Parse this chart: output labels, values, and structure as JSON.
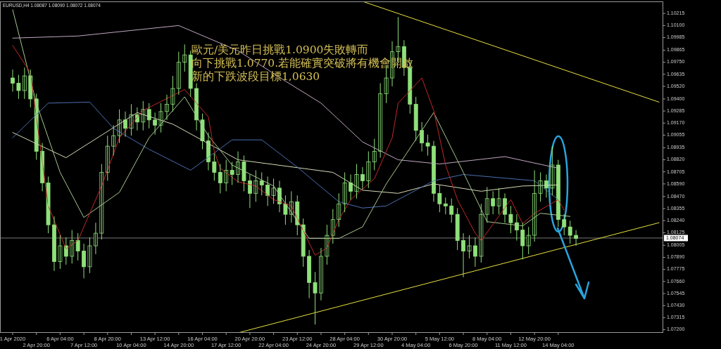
{
  "chart_data": {
    "type": "candlestick",
    "title": "EURUSD,H4 1.08087 1.08090 1.08072 1.08074",
    "annotations": [
      "歐元/美元昨日挑戰1.0900失敗轉而",
      "向下挑戰1.0770.若能確實突破將有機會開啟",
      "新的下跌波段目標1,0630"
    ],
    "categories": [
      "1 Apr 2020",
      null,
      null,
      null,
      "2 Apr 20:00",
      null,
      null,
      null,
      "6 Apr 04:00",
      null,
      null,
      null,
      "7 Apr 12:00",
      null,
      null,
      null,
      "8 Apr 20:00",
      null,
      null,
      null,
      "10 Apr 04:00",
      null,
      null,
      null,
      "13 Apr 12:00",
      null,
      null,
      null,
      "14 Apr 20:00",
      null,
      null,
      null,
      "16 Apr 04:00",
      null,
      null,
      null,
      "17 Apr 12:00",
      null,
      null,
      null,
      "20 Apr 20:00",
      null,
      null,
      null,
      "22 Apr 04:00",
      null,
      null,
      null,
      "23 Apr 12:00",
      null,
      null,
      null,
      "24 Apr 20:00",
      null,
      null,
      null,
      "28 Apr 04:00",
      null,
      null,
      null,
      "29 Apr 12:00",
      null,
      null,
      null,
      "30 Apr 20:00",
      null,
      null,
      null,
      "4 May 04:00",
      null,
      null,
      null,
      "5 May 12:00",
      null,
      null,
      null,
      "6 May 20:00",
      null,
      null,
      null,
      "8 May 04:00",
      null,
      null,
      null,
      "11 May 12:00",
      null,
      null,
      null,
      "12 May 20:00",
      null,
      null,
      null,
      "14 May 04:00",
      null,
      null,
      null,
      null,
      null,
      null,
      null,
      null,
      null,
      null,
      null,
      null,
      null,
      null,
      null,
      null,
      null
    ],
    "ylim": [
      1.0717,
      1.1033
    ],
    "yticks": [
      {
        "value": 1.072,
        "label": "1.07200"
      },
      {
        "value": 1.07315,
        "label": "1.07315"
      },
      {
        "value": 1.0743,
        "label": "1.07430"
      },
      {
        "value": 1.07545,
        "label": "1.07545"
      },
      {
        "value": 1.0766,
        "label": "1.07660"
      },
      {
        "value": 1.07775,
        "label": "1.07775"
      },
      {
        "value": 1.0789,
        "label": "1.07890"
      },
      {
        "value": 1.08005,
        "label": "1.08005"
      },
      {
        "value": 1.08125,
        "label": "1.08125"
      },
      {
        "value": 1.0824,
        "label": "1.08240"
      },
      {
        "value": 1.08355,
        "label": "1.08355"
      },
      {
        "value": 1.0847,
        "label": "1.08470"
      },
      {
        "value": 1.0859,
        "label": "1.08590"
      },
      {
        "value": 1.08705,
        "label": "1.08705"
      },
      {
        "value": 1.0882,
        "label": "1.08820"
      },
      {
        "value": 1.08935,
        "label": "1.08935"
      },
      {
        "value": 1.09055,
        "label": "1.09055"
      },
      {
        "value": 1.0917,
        "label": "1.09170"
      },
      {
        "value": 1.09285,
        "label": "1.09285"
      },
      {
        "value": 1.094,
        "label": "1.09400"
      },
      {
        "value": 1.0952,
        "label": "1.09520"
      },
      {
        "value": 1.09635,
        "label": "1.09635"
      },
      {
        "value": 1.0975,
        "label": "1.09750"
      },
      {
        "value": 1.09865,
        "label": "1.09865"
      },
      {
        "value": 1.09985,
        "label": "1.09985"
      },
      {
        "value": 1.101,
        "label": "1.10100"
      },
      {
        "value": 1.10215,
        "label": "1.10215"
      }
    ],
    "ref_lines": [
      {
        "axis": "y",
        "value": 1.08074,
        "label": "1.08074",
        "color": "#777777"
      }
    ],
    "series": [
      {
        "type": "line",
        "color": "#c0a8c0",
        "values": [
          1.0998,
          null,
          null,
          null,
          null,
          null,
          null,
          null,
          null,
          null,
          null,
          1.1,
          null,
          null,
          null,
          null,
          null,
          null,
          null,
          null,
          null,
          null,
          null,
          null,
          null,
          null,
          null,
          null,
          1.101,
          null,
          null,
          null,
          null,
          null,
          null,
          null,
          null,
          null,
          1.0986,
          null,
          null,
          null,
          null,
          null,
          null,
          null,
          1.0957,
          null,
          null,
          null,
          null,
          null,
          1.0936,
          null,
          null,
          null,
          null,
          null,
          null,
          1.0899,
          null,
          null,
          null,
          null,
          null,
          1.0882,
          null,
          null,
          null,
          null,
          null,
          null,
          1.0878,
          null,
          null,
          null,
          null,
          null,
          null,
          null,
          null,
          null,
          null,
          1.0885,
          null,
          null,
          null,
          null,
          null,
          null,
          null,
          null,
          1.0874,
          null,
          null,
          null,
          null,
          null,
          null,
          null,
          null,
          null,
          null,
          null,
          null,
          null,
          null,
          null,
          null,
          null
        ]
      },
      {
        "type": "line",
        "color": "#d8d8b8",
        "values": [
          1.0908,
          null,
          null,
          null,
          null,
          null,
          null,
          null,
          null,
          1.0884,
          null,
          null,
          null,
          null,
          null,
          null,
          null,
          null,
          null,
          null,
          null,
          1.0927,
          null,
          null,
          null,
          null,
          null,
          1.0916,
          null,
          null,
          null,
          null,
          null,
          null,
          null,
          null,
          null,
          null,
          1.0882,
          null,
          null,
          null,
          null,
          null,
          null,
          null,
          null,
          null,
          null,
          null,
          null,
          null,
          null,
          null,
          1.087,
          null,
          null,
          null,
          null,
          1.0853,
          null,
          null,
          null,
          null,
          null,
          1.085,
          null,
          null,
          null,
          null,
          null,
          1.0859,
          null,
          null,
          null,
          null,
          null,
          null,
          null,
          1.0852,
          null,
          null,
          null,
          null,
          null,
          null,
          1.0857,
          null,
          null,
          null,
          null,
          null,
          1.0858,
          null,
          null,
          null,
          null,
          null,
          null,
          null,
          null,
          null,
          null,
          null,
          null,
          null,
          null,
          null,
          null,
          null
        ]
      },
      {
        "type": "line",
        "color": "#4a6fb0",
        "values": [
          1.0903,
          null,
          null,
          null,
          null,
          null,
          1.0936,
          null,
          null,
          null,
          null,
          null,
          null,
          1.0937,
          null,
          null,
          null,
          1.0912,
          null,
          null,
          null,
          null,
          null,
          1.0892,
          null,
          null,
          null,
          null,
          null,
          null,
          1.0872,
          null,
          null,
          null,
          null,
          null,
          null,
          1.0901,
          null,
          null,
          null,
          null,
          1.0901,
          null,
          null,
          null,
          null,
          null,
          1.0875,
          null,
          null,
          null,
          null,
          null,
          null,
          1.0842,
          null,
          null,
          null,
          1.0836,
          null,
          null,
          null,
          1.0838,
          null,
          null,
          null,
          null,
          null,
          null,
          null,
          1.0862,
          null,
          null,
          null,
          null,
          1.0868,
          null,
          null,
          null,
          null,
          null,
          null,
          null,
          null,
          null,
          null,
          null,
          1.0862,
          null,
          null,
          null,
          1.0844,
          null,
          null,
          null,
          null,
          null,
          null,
          null,
          null,
          null,
          null,
          null,
          null,
          null,
          null,
          null,
          null,
          null
        ]
      },
      {
        "type": "line",
        "color": "#a8c890",
        "values": [
          1.1025,
          null,
          null,
          null,
          1.0936,
          null,
          null,
          null,
          1.087,
          null,
          null,
          null,
          1.0827,
          null,
          null,
          null,
          null,
          null,
          1.0851,
          null,
          null,
          null,
          null,
          1.0903,
          null,
          null,
          null,
          null,
          null,
          1.0942,
          null,
          null,
          null,
          1.0905,
          null,
          null,
          null,
          1.0877,
          null,
          null,
          null,
          null,
          null,
          null,
          1.0857,
          null,
          null,
          null,
          null,
          null,
          1.0807,
          null,
          null,
          null,
          null,
          1.0807,
          null,
          null,
          null,
          1.0818,
          null,
          null,
          null,
          1.0859,
          null,
          null,
          null,
          null,
          null,
          null,
          null,
          1.0927,
          null,
          null,
          null,
          null,
          1.087,
          null,
          null,
          null,
          1.0823,
          null,
          null,
          null,
          null,
          null,
          1.0819,
          null,
          null,
          1.0831,
          null,
          null,
          null,
          null,
          1.0828,
          null,
          null,
          null,
          null,
          null,
          null,
          null,
          null,
          null,
          null,
          null,
          null,
          null,
          null,
          null
        ]
      },
      {
        "type": "line",
        "color": "#c02828",
        "values": [
          1.0991,
          null,
          null,
          1.0965,
          null,
          null,
          1.0838,
          null,
          null,
          1.0797,
          null,
          1.0805,
          null,
          null,
          null,
          1.0857,
          null,
          null,
          1.0903,
          null,
          null,
          null,
          1.0929,
          null,
          null,
          null,
          null,
          null,
          null,
          1.0949,
          null,
          null,
          null,
          1.0923,
          1.089,
          1.0874,
          null,
          null,
          1.0861,
          null,
          null,
          1.0857,
          null,
          null,
          1.0844,
          null,
          null,
          1.0838,
          null,
          null,
          null,
          1.0791,
          null,
          1.0798,
          null,
          1.0825,
          null,
          1.0844,
          null,
          null,
          null,
          1.0864,
          null,
          null,
          1.0903,
          1.0936,
          null,
          null,
          null,
          1.096,
          null,
          1.0929,
          null,
          1.0877,
          null,
          1.0844,
          null,
          null,
          1.0812,
          1.0805,
          null,
          null,
          null,
          null,
          1.0844,
          null,
          1.0821,
          null,
          1.0831,
          null,
          null,
          null,
          1.0844,
          1.0834,
          null,
          null,
          null,
          null,
          null,
          null,
          null,
          null,
          null,
          null,
          null,
          null,
          null,
          null,
          null,
          null
        ]
      },
      {
        "type": "line",
        "color": "#e8e040",
        "values": [
          null,
          null,
          null,
          null,
          null,
          null,
          null,
          null,
          null,
          null,
          null,
          null,
          null,
          null,
          null,
          null,
          null,
          null,
          null,
          null,
          null,
          null,
          null,
          null,
          null,
          null,
          null,
          null,
          null,
          null,
          null,
          null,
          null,
          null,
          null,
          null,
          null,
          null,
          null,
          null,
          null,
          null,
          null,
          null,
          null,
          null,
          null,
          null,
          null,
          null,
          null,
          null,
          null,
          null,
          null,
          null,
          null,
          null,
          null,
          1.1033,
          null,
          null,
          null,
          null,
          null,
          null,
          null,
          null,
          null,
          null,
          null,
          null,
          null,
          null,
          null,
          null,
          null,
          null,
          null,
          null,
          null,
          null,
          null,
          null,
          null,
          null,
          null,
          null,
          null,
          null,
          null,
          null,
          null,
          null,
          null,
          null,
          null,
          null,
          null,
          null,
          null,
          null,
          null,
          null,
          null,
          null,
          null,
          null,
          null,
          1.0937
        ]
      },
      {
        "type": "line",
        "color": "#e8e040",
        "values": [
          null,
          null,
          null,
          null,
          null,
          null,
          null,
          null,
          null,
          null,
          null,
          null,
          null,
          null,
          null,
          null,
          null,
          null,
          null,
          null,
          null,
          null,
          null,
          null,
          null,
          null,
          null,
          null,
          null,
          null,
          null,
          null,
          null,
          null,
          null,
          null,
          null,
          null,
          1.0717,
          null,
          null,
          null,
          null,
          null,
          null,
          null,
          null,
          null,
          null,
          null,
          null,
          null,
          null,
          null,
          null,
          null,
          null,
          null,
          null,
          null,
          null,
          null,
          null,
          null,
          null,
          null,
          null,
          null,
          null,
          null,
          null,
          null,
          null,
          null,
          null,
          null,
          null,
          null,
          null,
          null,
          null,
          null,
          null,
          null,
          null,
          null,
          null,
          null,
          null,
          null,
          null,
          null,
          null,
          null,
          null,
          null,
          null,
          null,
          null,
          null,
          null,
          null,
          null,
          null,
          null,
          null,
          null,
          null,
          null,
          1.0822
        ]
      },
      {
        "color": "#8fe07a",
        "ohlc": [
          [
            1.096,
            1.0968,
            1.0947,
            1.0955
          ],
          [
            1.0955,
            1.0963,
            1.094,
            1.0948
          ],
          [
            1.0948,
            1.097,
            1.094,
            1.0962
          ],
          [
            1.0962,
            1.0968,
            1.0932,
            1.094
          ],
          [
            1.094,
            1.0945,
            1.0882,
            1.089
          ],
          [
            1.089,
            1.0898,
            1.0852,
            1.086
          ],
          [
            1.086,
            1.0866,
            1.0812,
            1.082
          ],
          [
            1.082,
            1.0828,
            1.0776,
            1.0785
          ],
          [
            1.0785,
            1.081,
            1.0778,
            1.08
          ],
          [
            1.08,
            1.0808,
            1.0782,
            1.079
          ],
          [
            1.079,
            1.0815,
            1.0783,
            1.0805
          ],
          [
            1.0805,
            1.0812,
            1.0786,
            1.0795
          ],
          [
            1.0795,
            1.0802,
            1.0769,
            1.078
          ],
          [
            1.078,
            1.0808,
            1.0774,
            1.08
          ],
          [
            1.08,
            1.0822,
            1.0792,
            1.0812
          ],
          [
            1.0812,
            1.0878,
            1.0806,
            1.087
          ],
          [
            1.087,
            1.0905,
            1.0862,
            1.0895
          ],
          [
            1.0895,
            1.0915,
            1.0886,
            1.0905
          ],
          [
            1.0905,
            1.093,
            1.0898,
            1.092
          ],
          [
            1.092,
            1.0928,
            1.0904,
            1.0912
          ],
          [
            1.0912,
            1.0935,
            1.0905,
            1.0925
          ],
          [
            1.0925,
            1.0932,
            1.091,
            1.0918
          ],
          [
            1.0918,
            1.0938,
            1.091,
            1.093
          ],
          [
            1.093,
            1.0936,
            1.0912,
            1.092
          ],
          [
            1.092,
            1.0927,
            1.0906,
            1.0915
          ],
          [
            1.0915,
            1.0936,
            1.0908,
            1.0928
          ],
          [
            1.0928,
            1.0944,
            1.092,
            1.0935
          ],
          [
            1.0935,
            1.0962,
            1.0928,
            1.095
          ],
          [
            1.095,
            1.0985,
            1.0944,
            1.0975
          ],
          [
            1.0975,
            1.0992,
            1.0966,
            1.0982
          ],
          [
            1.0982,
            1.0986,
            1.0942,
            1.095
          ],
          [
            1.095,
            1.0955,
            1.091,
            1.092
          ],
          [
            1.092,
            1.0926,
            1.0892,
            1.09
          ],
          [
            1.09,
            1.0908,
            1.0872,
            1.088
          ],
          [
            1.088,
            1.0888,
            1.0862,
            1.087
          ],
          [
            1.087,
            1.0878,
            1.085,
            1.086
          ],
          [
            1.086,
            1.0882,
            1.0852,
            1.0872
          ],
          [
            1.0872,
            1.088,
            1.0858,
            1.0868
          ],
          [
            1.0868,
            1.089,
            1.086,
            1.088
          ],
          [
            1.088,
            1.0886,
            1.0852,
            1.0862
          ],
          [
            1.0862,
            1.0868,
            1.0836,
            1.085
          ],
          [
            1.085,
            1.0872,
            1.0842,
            1.0862
          ],
          [
            1.0862,
            1.087,
            1.0848,
            1.0858
          ],
          [
            1.0858,
            1.0866,
            1.0838,
            1.0848
          ],
          [
            1.0848,
            1.0864,
            1.084,
            1.0855
          ],
          [
            1.0855,
            1.0862,
            1.0832,
            1.084
          ],
          [
            1.084,
            1.0848,
            1.082,
            1.083
          ],
          [
            1.083,
            1.0852,
            1.0822,
            1.0842
          ],
          [
            1.0842,
            1.0848,
            1.081,
            1.082
          ],
          [
            1.082,
            1.0826,
            1.078,
            1.079
          ],
          [
            1.079,
            1.0796,
            1.075,
            1.0765
          ],
          [
            1.0765,
            1.0775,
            1.0725,
            1.0755
          ],
          [
            1.0755,
            1.0798,
            1.0748,
            1.079
          ],
          [
            1.079,
            1.082,
            1.0782,
            1.081
          ],
          [
            1.081,
            1.0835,
            1.0802,
            1.0825
          ],
          [
            1.0825,
            1.085,
            1.0818,
            1.084
          ],
          [
            1.084,
            1.087,
            1.0832,
            1.086
          ],
          [
            1.086,
            1.0868,
            1.0844,
            1.0852
          ],
          [
            1.0852,
            1.0878,
            1.0845,
            1.0868
          ],
          [
            1.0868,
            1.0875,
            1.0854,
            1.0862
          ],
          [
            1.0862,
            1.089,
            1.0855,
            1.088
          ],
          [
            1.088,
            1.0902,
            1.0872,
            1.089
          ],
          [
            1.089,
            1.0955,
            1.0884,
            1.0945
          ],
          [
            1.0945,
            1.0972,
            1.0936,
            1.096
          ],
          [
            1.096,
            1.0995,
            1.0952,
            1.0985
          ],
          [
            1.0985,
            1.1018,
            1.0975,
            1.099
          ],
          [
            1.099,
            1.0996,
            1.0962,
            1.097
          ],
          [
            1.097,
            1.0975,
            1.0926,
            1.0935
          ],
          [
            1.0935,
            1.0942,
            1.09,
            1.091
          ],
          [
            1.091,
            1.0918,
            1.089,
            1.0898
          ],
          [
            1.0898,
            1.0906,
            1.0886,
            1.0895
          ],
          [
            1.0895,
            1.09,
            1.0842,
            1.085
          ],
          [
            1.085,
            1.0858,
            1.0832,
            1.084
          ],
          [
            1.084,
            1.0846,
            1.083,
            1.0838
          ],
          [
            1.0838,
            1.0845,
            1.0822,
            1.083
          ],
          [
            1.083,
            1.0836,
            1.0796,
            1.0805
          ],
          [
            1.0805,
            1.0812,
            1.077,
            1.0795
          ],
          [
            1.0795,
            1.081,
            1.0788,
            1.08
          ],
          [
            1.08,
            1.0808,
            1.078,
            1.079
          ],
          [
            1.079,
            1.084,
            1.0784,
            1.083
          ],
          [
            1.083,
            1.0856,
            1.0822,
            1.0845
          ],
          [
            1.0845,
            1.0852,
            1.083,
            1.0838
          ],
          [
            1.0838,
            1.0855,
            1.083,
            1.0845
          ],
          [
            1.0845,
            1.085,
            1.0822,
            1.083
          ],
          [
            1.083,
            1.0838,
            1.0812,
            1.0822
          ],
          [
            1.0822,
            1.083,
            1.0805,
            1.0815
          ],
          [
            1.0815,
            1.0822,
            1.0787,
            1.08
          ],
          [
            1.08,
            1.0818,
            1.0792,
            1.081
          ],
          [
            1.081,
            1.0872,
            1.0804,
            1.085
          ],
          [
            1.085,
            1.087,
            1.0842,
            1.0862
          ],
          [
            1.0862,
            1.0868,
            1.0846,
            1.0855
          ],
          [
            1.0855,
            1.0895,
            1.0848,
            1.0877
          ],
          [
            1.0877,
            1.0882,
            1.0818,
            1.0825
          ],
          [
            1.0825,
            1.083,
            1.081,
            1.0818
          ],
          [
            1.0818,
            1.0824,
            1.0802,
            1.081
          ],
          [
            1.081,
            1.0815,
            1.08,
            1.0807
          ],
          null,
          null,
          null,
          null,
          null,
          null,
          null,
          null,
          null,
          null,
          null,
          null,
          null,
          null
        ]
      }
    ]
  }
}
